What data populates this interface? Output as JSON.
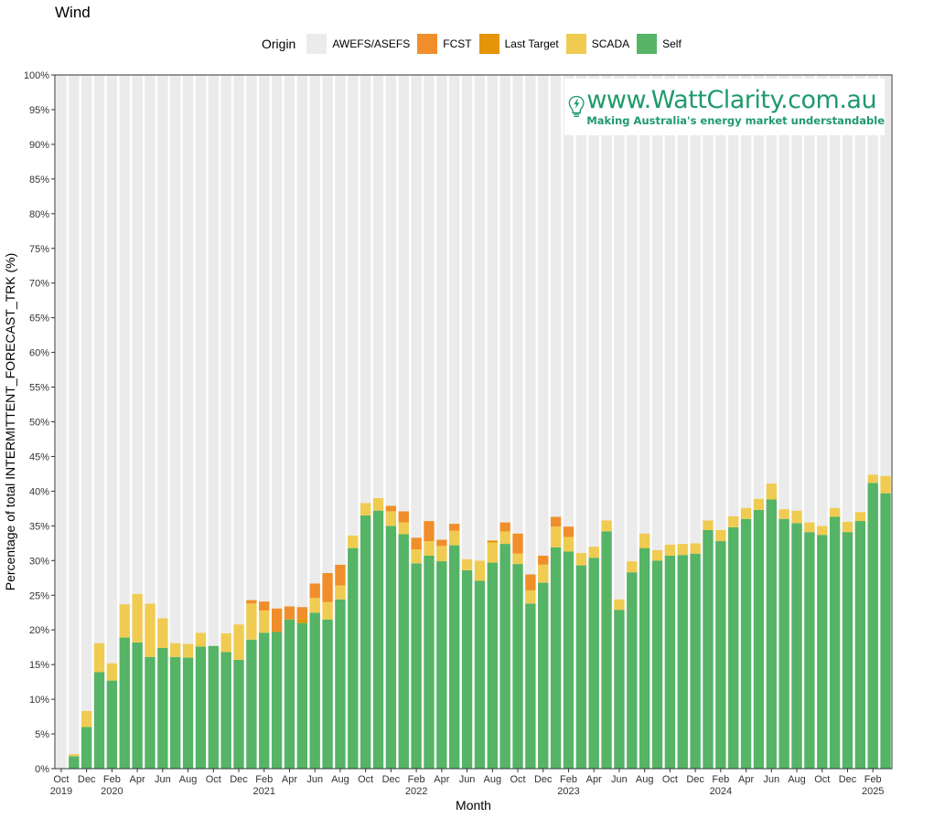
{
  "chart_data": {
    "type": "bar",
    "stacked": true,
    "title": "Wind",
    "xlabel": "Month",
    "ylabel": "Percentage of total INTERMITTENT_FORECAST_TRK (%)",
    "ylim": [
      0,
      100
    ],
    "y_ticks": [
      "0%",
      "5%",
      "10%",
      "15%",
      "20%",
      "25%",
      "30%",
      "35%",
      "40%",
      "45%",
      "50%",
      "55%",
      "60%",
      "65%",
      "70%",
      "75%",
      "80%",
      "85%",
      "90%",
      "95%",
      "100%"
    ],
    "grid": false,
    "legend_title": "Origin",
    "legend_position": "top",
    "categories": [
      "2019-10",
      "2019-11",
      "2019-12",
      "2020-01",
      "2020-02",
      "2020-03",
      "2020-04",
      "2020-05",
      "2020-06",
      "2020-07",
      "2020-08",
      "2020-09",
      "2020-10",
      "2020-11",
      "2020-12",
      "2021-01",
      "2021-02",
      "2021-03",
      "2021-04",
      "2021-05",
      "2021-06",
      "2021-07",
      "2021-08",
      "2021-09",
      "2021-10",
      "2021-11",
      "2021-12",
      "2022-01",
      "2022-02",
      "2022-03",
      "2022-04",
      "2022-05",
      "2022-06",
      "2022-07",
      "2022-08",
      "2022-09",
      "2022-10",
      "2022-11",
      "2022-12",
      "2023-01",
      "2023-02",
      "2023-03",
      "2023-04",
      "2023-05",
      "2023-06",
      "2023-07",
      "2023-08",
      "2023-09",
      "2023-10",
      "2023-11",
      "2023-12",
      "2024-01",
      "2024-02",
      "2024-03",
      "2024-04",
      "2024-05",
      "2024-06",
      "2024-07",
      "2024-08",
      "2024-09",
      "2024-10",
      "2024-11",
      "2024-12",
      "2025-01",
      "2025-02",
      "2025-03"
    ],
    "x_tick_labels": [
      {
        "month": "Oct",
        "year": "2019"
      },
      {
        "month": "Dec",
        "year": ""
      },
      {
        "month": "Feb",
        "year": "2020"
      },
      {
        "month": "Apr",
        "year": ""
      },
      {
        "month": "Jun",
        "year": ""
      },
      {
        "month": "Aug",
        "year": ""
      },
      {
        "month": "Oct",
        "year": ""
      },
      {
        "month": "Dec",
        "year": ""
      },
      {
        "month": "Feb",
        "year": "2021"
      },
      {
        "month": "Apr",
        "year": ""
      },
      {
        "month": "Jun",
        "year": ""
      },
      {
        "month": "Aug",
        "year": ""
      },
      {
        "month": "Oct",
        "year": ""
      },
      {
        "month": "Dec",
        "year": ""
      },
      {
        "month": "Feb",
        "year": "2022"
      },
      {
        "month": "Apr",
        "year": ""
      },
      {
        "month": "Jun",
        "year": ""
      },
      {
        "month": "Aug",
        "year": ""
      },
      {
        "month": "Oct",
        "year": ""
      },
      {
        "month": "Dec",
        "year": ""
      },
      {
        "month": "Feb",
        "year": "2023"
      },
      {
        "month": "Apr",
        "year": ""
      },
      {
        "month": "Jun",
        "year": ""
      },
      {
        "month": "Aug",
        "year": ""
      },
      {
        "month": "Oct",
        "year": ""
      },
      {
        "month": "Dec",
        "year": ""
      },
      {
        "month": "Feb",
        "year": "2024"
      },
      {
        "month": "Apr",
        "year": ""
      },
      {
        "month": "Jun",
        "year": ""
      },
      {
        "month": "Aug",
        "year": ""
      },
      {
        "month": "Oct",
        "year": ""
      },
      {
        "month": "Dec",
        "year": ""
      },
      {
        "month": "Feb",
        "year": "2025"
      }
    ],
    "series": [
      {
        "name": "Self",
        "color": "#55b465",
        "values": [
          0,
          1.8,
          6.0,
          13.9,
          12.7,
          18.9,
          18.2,
          16.1,
          17.4,
          16.1,
          16.0,
          17.6,
          17.7,
          16.8,
          15.7,
          18.6,
          19.6,
          19.7,
          21.5,
          21.0,
          22.5,
          21.5,
          24.4,
          31.8,
          36.5,
          37.2,
          35.0,
          33.8,
          29.6,
          30.7,
          29.9,
          32.2,
          28.6,
          27.1,
          29.7,
          32.4,
          29.5,
          23.8,
          26.8,
          31.9,
          31.3,
          29.3,
          30.4,
          34.2,
          22.9,
          28.3,
          31.8,
          30.0,
          30.7,
          30.8,
          31.0,
          34.4,
          32.8,
          34.8,
          36.0,
          37.3,
          38.8,
          36.0,
          35.4,
          34.1,
          33.7,
          36.3,
          34.1,
          35.7,
          41.2,
          39.7
        ]
      },
      {
        "name": "SCADA",
        "color": "#f0cb52",
        "values": [
          0,
          0.3,
          2.3,
          4.2,
          2.5,
          4.8,
          7.0,
          7.7,
          4.3,
          2.0,
          2.0,
          2.0,
          0,
          2.7,
          5.1,
          5.2,
          3.2,
          0,
          0,
          0,
          2.1,
          2.5,
          2.0,
          1.8,
          1.8,
          1.8,
          2.1,
          1.7,
          2.0,
          2.1,
          2.2,
          2.1,
          1.6,
          2.9,
          2.9,
          1.8,
          1.5,
          1.9,
          2.6,
          3.0,
          2.1,
          1.8,
          1.6,
          1.6,
          1.5,
          1.6,
          2.1,
          1.5,
          1.6,
          1.6,
          1.5,
          1.4,
          1.6,
          1.6,
          1.6,
          1.6,
          2.3,
          1.4,
          1.8,
          1.4,
          1.3,
          1.3,
          1.5,
          1.3,
          1.2,
          2.5
        ]
      },
      {
        "name": "Last Target",
        "color": "#e49508",
        "values": [
          0,
          0,
          0,
          0,
          0,
          0,
          0,
          0,
          0,
          0,
          0,
          0,
          0,
          0,
          0,
          0,
          0,
          0,
          0,
          0.6,
          0,
          0,
          0,
          0,
          0,
          0,
          0,
          0,
          0,
          0,
          0,
          0,
          0,
          0,
          0.3,
          0,
          0,
          0,
          0,
          0,
          0,
          0,
          0,
          0,
          0,
          0,
          0,
          0,
          0,
          0,
          0,
          0,
          0,
          0,
          0,
          0,
          0,
          0,
          0,
          0,
          0,
          0,
          0,
          0,
          0,
          0
        ]
      },
      {
        "name": "FCST",
        "color": "#f08e2b",
        "values": [
          0,
          0,
          0,
          0,
          0,
          0,
          0,
          0,
          0,
          0,
          0,
          0,
          0,
          0,
          0,
          0.5,
          1.3,
          3.4,
          1.9,
          1.7,
          2.1,
          4.2,
          3.0,
          0,
          0,
          0,
          0.8,
          1.6,
          1.7,
          2.9,
          0.9,
          1.0,
          0,
          0,
          0,
          1.3,
          2.9,
          2.3,
          1.3,
          1.4,
          1.5,
          0,
          0,
          0,
          0,
          0,
          0,
          0,
          0,
          0,
          0,
          0,
          0,
          0,
          0,
          0,
          0,
          0,
          0,
          0,
          0,
          0,
          0,
          0,
          0,
          0
        ]
      },
      {
        "name": "AWEFS/ASEFS",
        "color": "#ebebeb",
        "values": [
          100,
          97.9,
          91.7,
          81.9,
          84.8,
          76.3,
          74.8,
          76.2,
          78.3,
          81.9,
          82.0,
          80.4,
          82.3,
          80.5,
          79.2,
          75.7,
          75.9,
          76.9,
          76.6,
          76.7,
          73.3,
          71.8,
          70.6,
          66.4,
          61.7,
          61.0,
          62.1,
          62.9,
          66.7,
          64.3,
          67.0,
          64.7,
          69.8,
          70.0,
          67.1,
          64.5,
          66.1,
          72.0,
          69.3,
          63.7,
          65.1,
          68.9,
          68.0,
          64.2,
          75.6,
          70.1,
          66.1,
          68.5,
          67.7,
          67.6,
          67.5,
          64.2,
          65.6,
          63.6,
          62.4,
          61.1,
          58.9,
          62.6,
          62.8,
          64.5,
          65.0,
          62.4,
          64.4,
          63.0,
          57.6,
          57.8
        ]
      }
    ],
    "legend_order": [
      "AWEFS/ASEFS",
      "FCST",
      "Last Target",
      "SCADA",
      "Self"
    ]
  },
  "watermark": {
    "url": "www.WattClarity.com.au",
    "tagline": "Making Australia's energy market understandable",
    "color": "#1f9a6c"
  }
}
